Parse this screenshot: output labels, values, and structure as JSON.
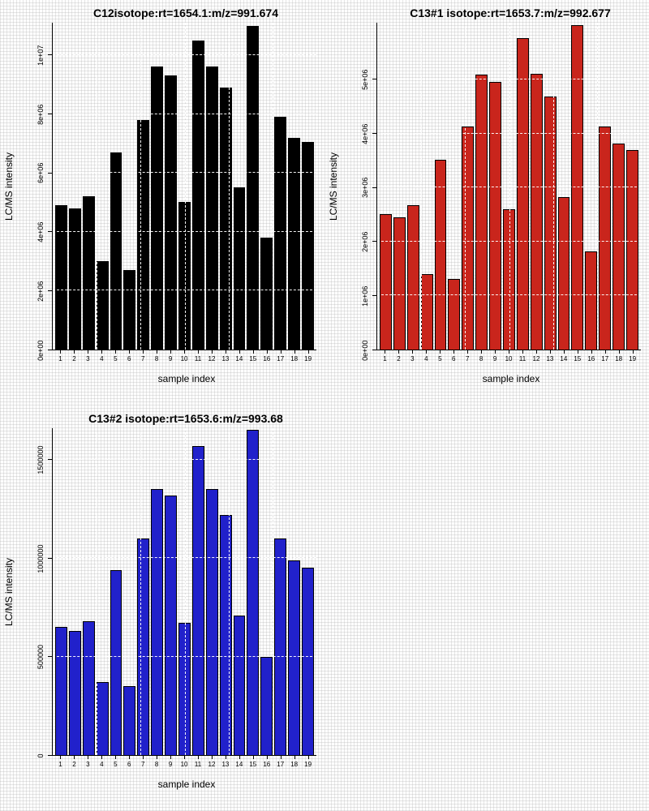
{
  "page": {
    "background": "#fdfdfd"
  },
  "chart_data": [
    {
      "type": "bar",
      "title": "C12isotope:rt=1654.1:m/z=991.674",
      "xlabel": "sample index",
      "ylabel": "LC/MS intensity",
      "bar_color": "#000000",
      "grid": "white dashed overlay, dotted page texture",
      "legend": "none",
      "categories": [
        "1",
        "2",
        "3",
        "4",
        "5",
        "6",
        "7",
        "8",
        "9",
        "10",
        "11",
        "12",
        "13",
        "14",
        "15",
        "16",
        "17",
        "18",
        "19"
      ],
      "values": [
        4900000,
        4800000,
        5200000,
        3000000,
        6700000,
        2700000,
        7800000,
        9600000,
        9300000,
        5000000,
        10500000,
        9600000,
        8900000,
        5500000,
        11000000,
        3800000,
        7900000,
        7200000,
        7050000
      ],
      "ymax": 11100000,
      "yticks": [
        {
          "value": 0,
          "label": "0e+00"
        },
        {
          "value": 2000000,
          "label": "2e+06"
        },
        {
          "value": 4000000,
          "label": "4e+06"
        },
        {
          "value": 6000000,
          "label": "6e+06"
        },
        {
          "value": 8000000,
          "label": "8e+06"
        },
        {
          "value": 10000000,
          "label": "1e+07"
        }
      ]
    },
    {
      "type": "bar",
      "title": "C13#1 isotope:rt=1653.7:m/z=992.677",
      "xlabel": "sample index",
      "ylabel": "LC/MS intensity",
      "bar_color": "#c9251c",
      "grid": "white dashed overlay, dotted page texture",
      "legend": "none",
      "categories": [
        "1",
        "2",
        "3",
        "4",
        "5",
        "6",
        "7",
        "8",
        "9",
        "10",
        "11",
        "12",
        "13",
        "14",
        "15",
        "16",
        "17",
        "18",
        "19"
      ],
      "values": [
        2500000,
        2450000,
        2670000,
        1400000,
        3520000,
        1300000,
        4130000,
        5090000,
        4960000,
        2600000,
        5760000,
        5100000,
        4690000,
        2820000,
        6000000,
        1820000,
        4130000,
        3810000,
        3700000
      ],
      "ymax": 6050000,
      "yticks": [
        {
          "value": 0,
          "label": "0e+00"
        },
        {
          "value": 1000000,
          "label": "1e+06"
        },
        {
          "value": 2000000,
          "label": "2e+06"
        },
        {
          "value": 3000000,
          "label": "3e+06"
        },
        {
          "value": 4000000,
          "label": "4e+06"
        },
        {
          "value": 5000000,
          "label": "5e+06"
        }
      ]
    },
    {
      "type": "bar",
      "title": "C13#2 isotope:rt=1653.6:m/z=993.68",
      "xlabel": "sample index",
      "ylabel": "LC/MS intensity",
      "bar_color": "#2121cb",
      "grid": "white dashed overlay, dotted page texture",
      "legend": "none",
      "categories": [
        "1",
        "2",
        "3",
        "4",
        "5",
        "6",
        "7",
        "8",
        "9",
        "10",
        "11",
        "12",
        "13",
        "14",
        "15",
        "16",
        "17",
        "18",
        "19"
      ],
      "values": [
        650000,
        630000,
        680000,
        370000,
        940000,
        350000,
        1100000,
        1350000,
        1320000,
        670000,
        1570000,
        1350000,
        1220000,
        710000,
        1650000,
        500000,
        1100000,
        990000,
        950000
      ],
      "ymax": 1660000,
      "yticks": [
        {
          "value": 0,
          "label": "0"
        },
        {
          "value": 500000,
          "label": "500000"
        },
        {
          "value": 1000000,
          "label": "1000000"
        },
        {
          "value": 1500000,
          "label": "1500000"
        }
      ]
    }
  ]
}
